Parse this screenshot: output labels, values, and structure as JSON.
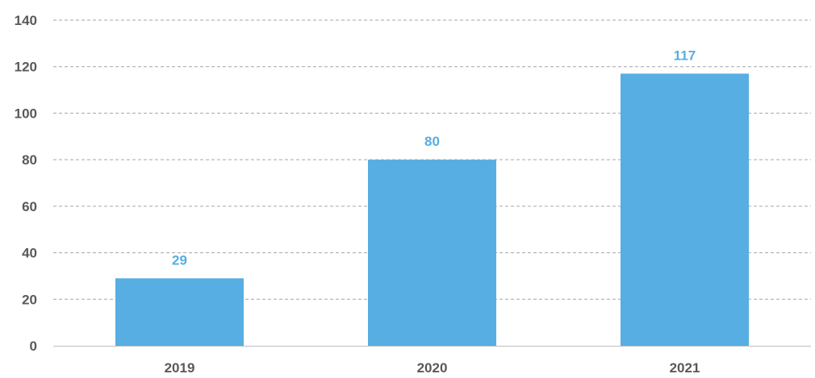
{
  "chart_data": {
    "type": "bar",
    "categories": [
      "2019",
      "2020",
      "2021"
    ],
    "values": [
      29,
      80,
      117
    ],
    "data_labels": [
      "29",
      "80",
      "117"
    ],
    "title": "",
    "xlabel": "",
    "ylabel": "",
    "ylim": [
      0,
      140
    ],
    "yticks": [
      0,
      20,
      40,
      60,
      80,
      100,
      120,
      140
    ],
    "grid": true,
    "legend": "none",
    "bar_color": "#56AEE2",
    "label_color": "#56AEE2",
    "axis_text_color": "#595959",
    "grid_color": "#A6A6A6"
  }
}
